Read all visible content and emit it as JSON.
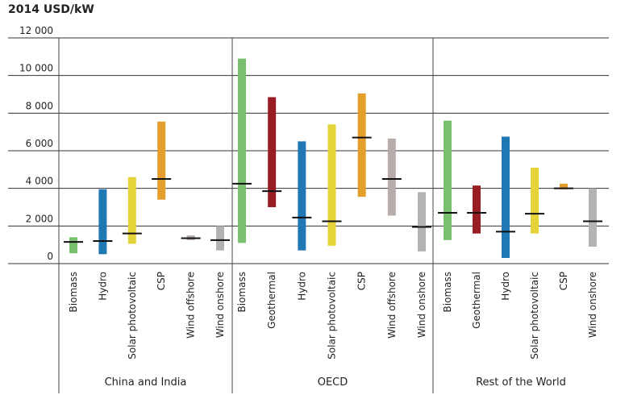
{
  "chart_data": {
    "type": "range-bar",
    "unit_label": "2014 USD/kW",
    "ylim": [
      0,
      12000
    ],
    "yticks": [
      0,
      2000,
      4000,
      6000,
      8000,
      10000,
      12000
    ],
    "ytick_labels": [
      "0",
      "2 000",
      "4 000",
      "6 000",
      "8 000",
      "10 000",
      "12 000"
    ],
    "grid": true,
    "legend": "none",
    "groups": [
      {
        "name": "China and India",
        "bars": [
          {
            "category": "Biomass",
            "low": 550,
            "high": 1400,
            "avg": 1150,
            "color": "#78bf6e"
          },
          {
            "category": "Hydro",
            "low": 500,
            "high": 3950,
            "avg": 1200,
            "color": "#1f77b4"
          },
          {
            "category": "Solar photovoltaic",
            "low": 1050,
            "high": 4600,
            "avg": 1600,
            "color": "#e5d33a"
          },
          {
            "category": "CSP",
            "low": 3400,
            "high": 7550,
            "avg": 4500,
            "color": "#e59d2c"
          },
          {
            "category": "Wind offshore",
            "low": 1250,
            "high": 1500,
            "avg": 1350,
            "color": "#b8acaa"
          },
          {
            "category": "Wind onshore",
            "low": 700,
            "high": 2000,
            "avg": 1250,
            "color": "#b3b3b3"
          }
        ]
      },
      {
        "name": "OECD",
        "bars": [
          {
            "category": "Biomass",
            "low": 1100,
            "high": 10900,
            "avg": 4250,
            "color": "#78bf6e"
          },
          {
            "category": "Geothermal",
            "low": 3000,
            "high": 8850,
            "avg": 3850,
            "color": "#981e24"
          },
          {
            "category": "Hydro",
            "low": 700,
            "high": 6500,
            "avg": 2450,
            "color": "#1f77b4"
          },
          {
            "category": "Solar photovoltaic",
            "low": 950,
            "high": 7400,
            "avg": 2250,
            "color": "#e5d33a"
          },
          {
            "category": "CSP",
            "low": 3550,
            "high": 9050,
            "avg": 6700,
            "color": "#e59d2c"
          },
          {
            "category": "Wind offshore",
            "low": 2550,
            "high": 6650,
            "avg": 4500,
            "color": "#b8acaa"
          },
          {
            "category": "Wind onshore",
            "low": 650,
            "high": 3800,
            "avg": 1950,
            "color": "#b3b3b3"
          }
        ]
      },
      {
        "name": "Rest of the World",
        "bars": [
          {
            "category": "Biomass",
            "low": 1250,
            "high": 7600,
            "avg": 2700,
            "color": "#78bf6e"
          },
          {
            "category": "Geothermal",
            "low": 1600,
            "high": 4150,
            "avg": 2700,
            "color": "#981e24"
          },
          {
            "category": "Hydro",
            "low": 300,
            "high": 6750,
            "avg": 1700,
            "color": "#1f77b4"
          },
          {
            "category": "Solar photovoltaic",
            "low": 1600,
            "high": 5100,
            "avg": 2650,
            "color": "#e5d33a"
          },
          {
            "category": "CSP",
            "low": 3950,
            "high": 4250,
            "avg": 4000,
            "color": "#e59d2c"
          },
          {
            "category": "Wind onshore",
            "low": 900,
            "high": 4000,
            "avg": 2250,
            "color": "#b3b3b3"
          }
        ]
      }
    ]
  }
}
